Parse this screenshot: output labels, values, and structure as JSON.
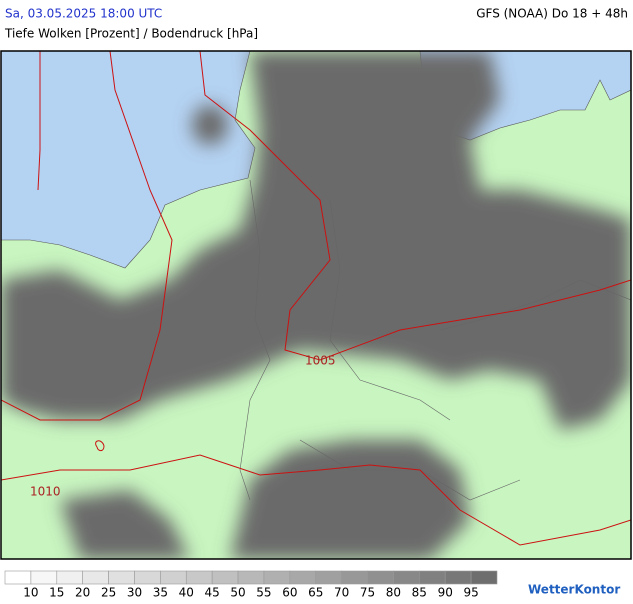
{
  "header": {
    "datetime": "Sa, 03.05.2025 18:00 UTC",
    "model": "GFS (NOAA) Do 18 + 48h",
    "subtitle": "Tiefe Wolken [Prozent] / Bodendruck [hPa]"
  },
  "map": {
    "isobar_labels": [
      "1005",
      "1010"
    ]
  },
  "legend": {
    "labels": [
      10,
      15,
      20,
      25,
      30,
      35,
      40,
      45,
      50,
      55,
      60,
      65,
      70,
      75,
      80,
      85,
      90,
      95
    ],
    "colors": [
      "#ffffff",
      "#f7f7f7",
      "#f0f0f0",
      "#e8e8e8",
      "#e0e0e0",
      "#d8d8d8",
      "#d0d0d0",
      "#c8c8c8",
      "#c0c0c0",
      "#b8b8b8",
      "#b0b0b0",
      "#a8a8a8",
      "#a0a0a0",
      "#989898",
      "#909090",
      "#888888",
      "#808080",
      "#787878",
      "#6e6e6e"
    ]
  },
  "logo": "WetterKontor"
}
